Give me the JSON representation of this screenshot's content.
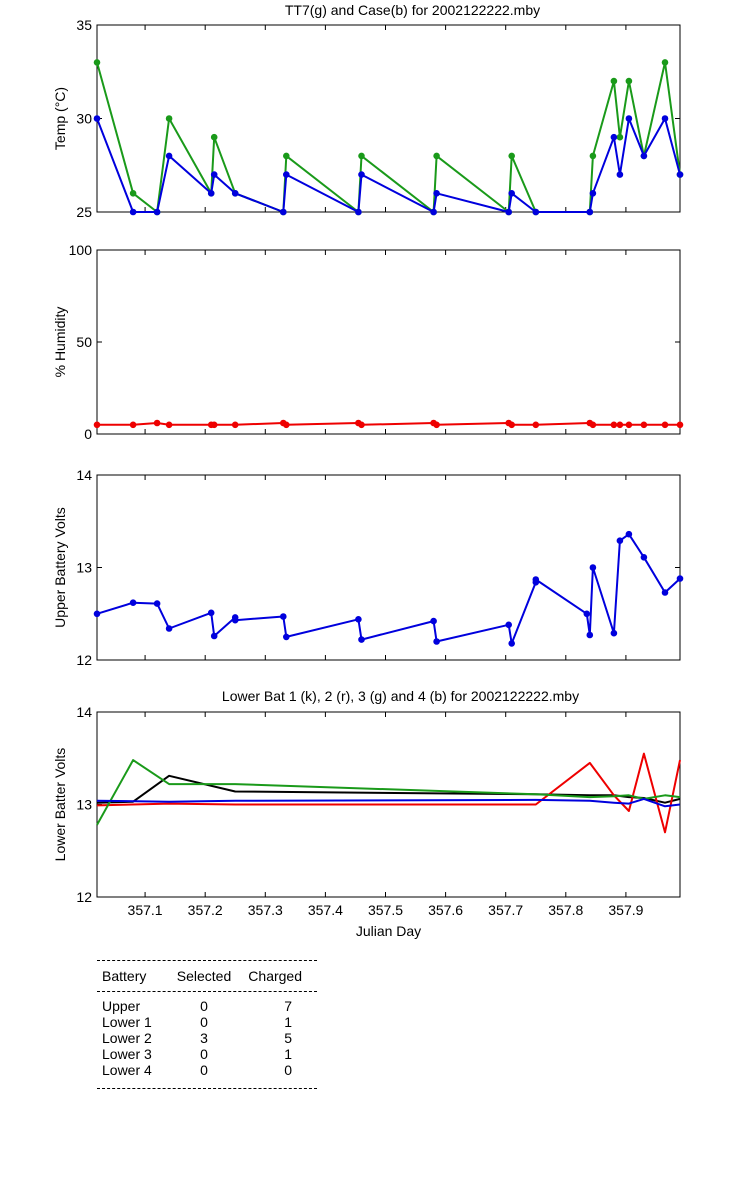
{
  "colors": {
    "green": "#1a9a1a",
    "blue": "#0000dd",
    "red": "#ee0000",
    "black": "#000000"
  },
  "chart_data": [
    {
      "type": "line",
      "title": "TT7(g) and Case(b) for 2002122222.mby",
      "xlabel": "",
      "ylabel": "Temp  (°C)",
      "xlim": [
        357.02,
        357.99
      ],
      "ylim": [
        25,
        35
      ],
      "yticks": [
        "25",
        "30",
        "35"
      ],
      "grid": false,
      "series": [
        {
          "name": "TT7",
          "color": "green",
          "x": [
            357.02,
            357.08,
            357.12,
            357.14,
            357.21,
            357.215,
            357.25,
            357.33,
            357.335,
            357.455,
            357.46,
            357.58,
            357.585,
            357.705,
            357.71,
            357.75,
            357.84,
            357.845,
            357.88,
            357.89,
            357.905,
            357.93,
            357.965,
            357.99
          ],
          "y": [
            33,
            26,
            25,
            30,
            26,
            29,
            26,
            25,
            28,
            25,
            28,
            25,
            28,
            25,
            28,
            25,
            25,
            28,
            32,
            29,
            32,
            28,
            33,
            27
          ]
        },
        {
          "name": "Case",
          "color": "blue",
          "x": [
            357.02,
            357.08,
            357.12,
            357.14,
            357.21,
            357.215,
            357.25,
            357.33,
            357.335,
            357.455,
            357.46,
            357.58,
            357.585,
            357.705,
            357.71,
            357.75,
            357.84,
            357.845,
            357.88,
            357.89,
            357.905,
            357.93,
            357.965,
            357.99
          ],
          "y": [
            30,
            25,
            25,
            28,
            26,
            27,
            26,
            25,
            27,
            25,
            27,
            25,
            26,
            25,
            26,
            25,
            25,
            26,
            29,
            27,
            30,
            28,
            30,
            27
          ]
        }
      ]
    },
    {
      "type": "line",
      "title": "",
      "xlabel": "",
      "ylabel": "% Humidity",
      "xlim": [
        357.02,
        357.99
      ],
      "ylim": [
        0,
        100
      ],
      "yticks": [
        "0",
        "50",
        "100"
      ],
      "grid": false,
      "series": [
        {
          "name": "",
          "color": "red",
          "x": [
            357.02,
            357.08,
            357.12,
            357.14,
            357.21,
            357.215,
            357.25,
            357.33,
            357.335,
            357.455,
            357.46,
            357.58,
            357.585,
            357.705,
            357.71,
            357.75,
            357.84,
            357.845,
            357.88,
            357.89,
            357.905,
            357.93,
            357.965,
            357.99
          ],
          "y": [
            5,
            5,
            6,
            5,
            5,
            5,
            5,
            6,
            5,
            6,
            5,
            6,
            5,
            6,
            5,
            5,
            6,
            5,
            5,
            5,
            5,
            5,
            5,
            5
          ]
        }
      ]
    },
    {
      "type": "line",
      "title": "",
      "xlabel": "",
      "ylabel": "Upper Battery Volts",
      "xlim": [
        357.02,
        357.99
      ],
      "ylim": [
        12,
        14
      ],
      "yticks": [
        "12",
        "13",
        "14"
      ],
      "grid": false,
      "series": [
        {
          "name": "",
          "color": "blue",
          "x": [
            357.02,
            357.08,
            357.12,
            357.14,
            357.21,
            357.215,
            357.25,
            357.25,
            357.33,
            357.335,
            357.455,
            357.46,
            357.58,
            357.585,
            357.705,
            357.71,
            357.75,
            357.75,
            357.835,
            357.84,
            357.845,
            357.88,
            357.89,
            357.905,
            357.93,
            357.965,
            357.99
          ],
          "y": [
            12.5,
            12.62,
            12.61,
            12.34,
            12.51,
            12.26,
            12.46,
            12.43,
            12.47,
            12.25,
            12.44,
            12.22,
            12.42,
            12.2,
            12.38,
            12.18,
            12.84,
            12.87,
            12.5,
            12.27,
            13.0,
            12.29,
            13.29,
            13.36,
            13.11,
            12.73,
            12.88
          ]
        }
      ]
    },
    {
      "type": "line",
      "title": "Lower Bat 1 (k), 2 (r), 3 (g) and 4 (b) for 2002122222.mby",
      "xlabel": "Julian Day",
      "ylabel": "Lower Batter Volts",
      "xlim": [
        357.02,
        357.99
      ],
      "ylim": [
        12,
        14
      ],
      "yticks": [
        "12",
        "13",
        "14"
      ],
      "xticks": [
        "357.1",
        "357.2",
        "357.3",
        "357.4",
        "357.5",
        "357.6",
        "357.7",
        "357.8",
        "357.9"
      ],
      "grid": false,
      "series": [
        {
          "name": "1",
          "color": "black",
          "x": [
            357.02,
            357.08,
            357.14,
            357.25,
            357.75,
            357.84,
            357.88,
            357.905,
            357.93,
            357.965,
            357.99
          ],
          "y": [
            13.02,
            13.03,
            13.31,
            13.14,
            13.11,
            13.1,
            13.1,
            13.08,
            13.07,
            13.02,
            13.06
          ]
        },
        {
          "name": "2",
          "color": "red",
          "x": [
            357.02,
            357.14,
            357.25,
            357.75,
            357.84,
            357.88,
            357.905,
            357.93,
            357.965,
            357.99
          ],
          "y": [
            12.99,
            13.01,
            13.0,
            13.0,
            13.45,
            13.1,
            12.93,
            13.55,
            12.7,
            13.48
          ]
        },
        {
          "name": "3",
          "color": "green",
          "x": [
            357.02,
            357.08,
            357.14,
            357.25,
            357.75,
            357.84,
            357.88,
            357.905,
            357.93,
            357.965,
            357.99
          ],
          "y": [
            12.78,
            13.48,
            13.22,
            13.22,
            13.11,
            13.08,
            13.09,
            13.1,
            13.06,
            13.1,
            13.08
          ]
        },
        {
          "name": "4",
          "color": "blue",
          "x": [
            357.02,
            357.14,
            357.25,
            357.75,
            357.84,
            357.88,
            357.905,
            357.93,
            357.965,
            357.99
          ],
          "y": [
            13.04,
            13.03,
            13.04,
            13.05,
            13.04,
            13.02,
            13.01,
            13.06,
            12.98,
            13.0
          ]
        }
      ]
    }
  ],
  "table": {
    "headers": [
      "Battery",
      "Selected",
      "Charged"
    ],
    "rows": [
      [
        "Upper",
        "0",
        "7"
      ],
      [
        "Lower 1",
        "0",
        "1"
      ],
      [
        "Lower 2",
        "3",
        "5"
      ],
      [
        "Lower 3",
        "0",
        "1"
      ],
      [
        "Lower 4",
        "0",
        "0"
      ]
    ]
  }
}
